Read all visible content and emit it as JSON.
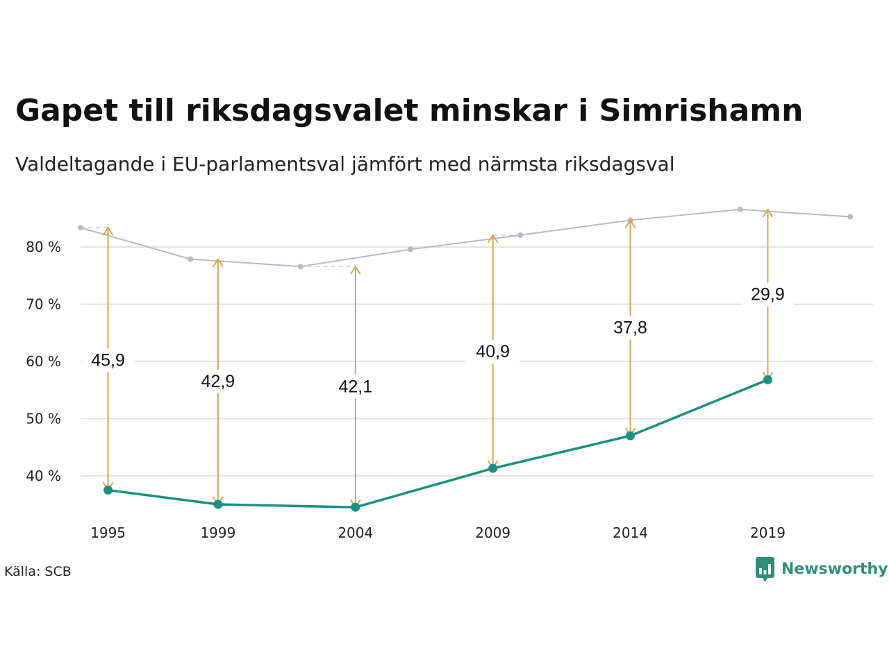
{
  "title": "Gapet till riksdagsvalet minskar i Simrishamn",
  "subtitle": "Valdeltagande i EU-parlamentsval jämfört med närmsta riksdagsval",
  "source": "Källa: SCB",
  "logo_text": "Newsworthy",
  "colors": {
    "eu_line": "#1a9080",
    "riksdag_line": "#bcb8cb",
    "gap_arrow": "#d6a54e",
    "grid": "#e3e3e3",
    "logo": "#2f8e78"
  },
  "chart_data": {
    "type": "line",
    "title": "Gapet till riksdagsvalet minskar i Simrishamn",
    "subtitle": "Valdeltagande i EU-parlamentsval jämfört med närmsta riksdagsval",
    "xlabel": "",
    "ylabel": "",
    "ylim": [
      31,
      89
    ],
    "xlim": [
      1994,
      2022.5
    ],
    "y_ticks": [
      {
        "value": 40,
        "label": "40 %"
      },
      {
        "value": 50,
        "label": "50 %"
      },
      {
        "value": 60,
        "label": "60 %"
      },
      {
        "value": 70,
        "label": "70 %"
      },
      {
        "value": 80,
        "label": "80 %"
      }
    ],
    "x_ticks": [
      {
        "value": 1995,
        "label": "1995"
      },
      {
        "value": 1999,
        "label": "1999"
      },
      {
        "value": 2004,
        "label": "2004"
      },
      {
        "value": 2009,
        "label": "2009"
      },
      {
        "value": 2014,
        "label": "2014"
      },
      {
        "value": 2019,
        "label": "2019"
      }
    ],
    "grid": true,
    "legend": "none",
    "series": [
      {
        "x": [
          1994,
          1998,
          2002,
          2006,
          2010,
          2014,
          2018,
          2022
        ],
        "y": [
          83.4,
          77.9,
          76.6,
          79.6,
          82.1,
          84.7,
          86.6,
          85.3
        ]
      },
      {
        "x": [
          1995,
          1999,
          2004,
          2009,
          2014,
          2019
        ],
        "y": [
          37.5,
          35.0,
          34.5,
          41.3,
          47.0,
          56.8
        ]
      }
    ],
    "gaps": [
      {
        "x": 1995,
        "from": 37.5,
        "to": 83.4,
        "label": "45,9",
        "label_y": 60.2
      },
      {
        "x": 1999,
        "from": 35.0,
        "to": 77.9,
        "label": "42,9",
        "label_y": 56.5
      },
      {
        "x": 2004,
        "from": 34.5,
        "to": 76.6,
        "label": "42,1",
        "label_y": 55.6
      },
      {
        "x": 2009,
        "from": 41.3,
        "to": 82.1,
        "label": "40,9",
        "label_y": 61.7
      },
      {
        "x": 2014,
        "from": 47.0,
        "to": 84.7,
        "label": "37,8",
        "label_y": 65.9
      },
      {
        "x": 2019,
        "from": 56.8,
        "to": 86.6,
        "label": "29,9",
        "label_y": 71.7
      }
    ]
  }
}
